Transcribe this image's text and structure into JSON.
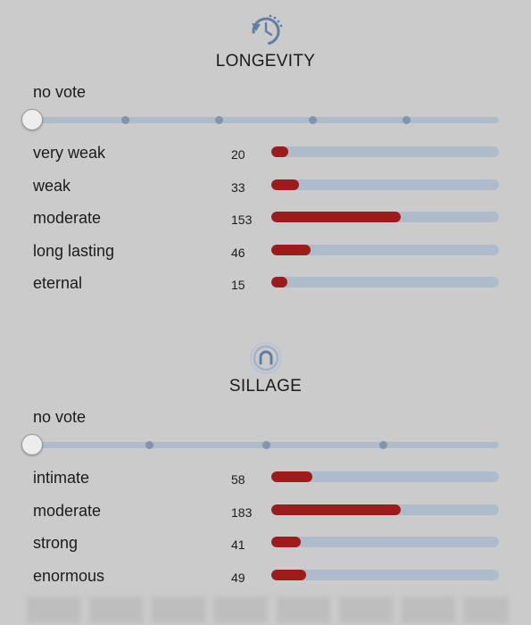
{
  "longevity": {
    "icon": "clock-rotate-icon",
    "title": "LONGEVITY",
    "vote_label": "no vote",
    "slider_stops": 5,
    "max_votes": 153,
    "rows": [
      {
        "label": "very weak",
        "count": 20
      },
      {
        "label": "weak",
        "count": 33
      },
      {
        "label": "moderate",
        "count": 153
      },
      {
        "label": "long lasting",
        "count": 46
      },
      {
        "label": "eternal",
        "count": 15
      }
    ]
  },
  "sillage": {
    "icon": "sillage-ring-icon",
    "title": "SILLAGE",
    "vote_label": "no vote",
    "slider_stops": 4,
    "max_votes": 183,
    "rows": [
      {
        "label": "intimate",
        "count": 58
      },
      {
        "label": "moderate",
        "count": 183
      },
      {
        "label": "strong",
        "count": 41
      },
      {
        "label": "enormous",
        "count": 49
      }
    ]
  },
  "colors": {
    "background": "#cbcbcb",
    "bar_track": "#aebbca",
    "bar_fill": "#9e1b1b",
    "icon_blue": "#5f7ea3"
  }
}
